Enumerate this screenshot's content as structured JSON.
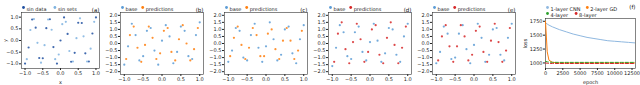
{
  "chart_data": [
    {
      "type": "scatter",
      "title": "(a)",
      "x_label": "x",
      "y_label": "y",
      "legend": "upper left",
      "xlim": [
        -1.1,
        1.1
      ],
      "ylim": [
        -1.2,
        1.2
      ],
      "xticks": [
        {
          "value": -1,
          "label": "−1.0"
        },
        {
          "value": -0.5,
          "label": "−0.5"
        },
        {
          "value": 0,
          "label": "0.0"
        },
        0.5,
        {
          "value": 1,
          "label": "1.0"
        }
      ],
      "yticks": [
        {
          "value": -1,
          "label": "−1.0"
        },
        {
          "value": -0.5,
          "label": "−0.5"
        },
        {
          "value": 0,
          "label": "0.0"
        },
        0.5,
        {
          "value": 1,
          "label": "1.0"
        }
      ],
      "series": [
        {
          "name": "sin data",
          "color": "#1f4fa0",
          "marker": "o",
          "x": [
            -1,
            -0.9,
            -0.8,
            -0.7,
            -0.6,
            -0.5,
            -0.4,
            -0.3,
            -0.2,
            -0.1,
            0,
            0.1,
            0.2,
            0.3,
            0.4,
            0.5,
            0.6,
            0.7,
            0.8,
            0.9,
            1
          ],
          "values": [
            -0.99,
            -0.3,
            0.9,
            0.55,
            -0.75,
            -0.76,
            0.53,
            0.91,
            -0.28,
            -0.99,
            0,
            0.99,
            0.28,
            -0.91,
            -0.53,
            0.76,
            0.75,
            -0.55,
            -0.9,
            0.3,
            0.99
          ]
        },
        {
          "name": "sin sets",
          "color": "#7fb3e0",
          "marker": "o",
          "x": [
            -0.95,
            -0.85,
            -0.75,
            -0.65,
            -0.55,
            -0.45,
            -0.35,
            -0.25,
            -0.15,
            -0.05,
            0.05,
            0.15,
            0.25,
            0.35,
            0.45,
            0.55,
            0.65,
            0.75,
            0.85,
            0.95
          ],
          "values": [
            -0.8,
            0.45,
            0.92,
            -0.1,
            -0.95,
            -0.2,
            0.9,
            0.46,
            -0.8,
            -0.6,
            0.7,
            0.8,
            -0.45,
            -0.9,
            0.1,
            0.95,
            0.18,
            -0.9,
            -0.35,
            0.8
          ]
        }
      ]
    },
    {
      "type": "scatter",
      "title": "(b)",
      "legend": "upper left",
      "xlim": [
        -1.1,
        1.1
      ],
      "ylim": [
        -2.2,
        2.2
      ],
      "xticks": [
        {
          "value": -1,
          "label": "−1.0"
        },
        {
          "value": -0.5,
          "label": "−0.5"
        },
        {
          "value": 0,
          "label": "0.0"
        },
        0.5,
        {
          "value": 1,
          "label": "1.0"
        }
      ],
      "yticks": [
        {
          "value": -2,
          "label": "−2.0"
        },
        {
          "value": -1.5,
          "label": "−1.5"
        },
        {
          "value": -1,
          "label": "−1.0"
        },
        {
          "value": -0.5,
          "label": "−0.5"
        },
        {
          "value": 0,
          "label": "0.0"
        },
        0.5,
        {
          "value": 1,
          "label": "1.0"
        },
        1.5,
        {
          "value": 2,
          "label": "2.0"
        }
      ],
      "series": [
        {
          "name": "base",
          "color": "#5b9bd5",
          "marker": "o",
          "x": [
            -1,
            -0.9,
            -0.8,
            -0.7,
            -0.6,
            -0.5,
            -0.4,
            -0.3,
            -0.2,
            -0.1,
            0,
            0.1,
            0.2,
            0.3,
            0.4,
            0.5,
            0.6,
            0.7,
            0.8,
            0.9,
            1
          ],
          "values": [
            -1.5,
            -0.2,
            1.4,
            0.6,
            -1.2,
            -0.9,
            0.9,
            1.1,
            -0.5,
            -1.5,
            0.2,
            1.3,
            0.5,
            -1.4,
            -0.6,
            1.2,
            0.9,
            -0.9,
            -1.1,
            0.6,
            1.5
          ]
        },
        {
          "name": "predictions",
          "color": "#ff7f0e",
          "marker": "o",
          "x": [
            -0.95,
            -0.85,
            -0.75,
            -0.65,
            -0.55,
            -0.45,
            -0.35,
            -0.25,
            -0.15,
            -0.05,
            0.05,
            0.15,
            0.25,
            0.35,
            0.45,
            0.55,
            0.65,
            0.75,
            0.85,
            0.95
          ],
          "values": [
            -1.1,
            0.6,
            1.2,
            -0.3,
            -1.3,
            -0.1,
            1.2,
            0.4,
            -1.1,
            -0.7,
            0.9,
            1.1,
            -0.6,
            -1.2,
            0.3,
            1.3,
            0,
            -1.2,
            -0.4,
            1.1
          ]
        }
      ]
    },
    {
      "type": "scatter",
      "title": "(c)",
      "legend": "upper left",
      "xlim": [
        -1.1,
        1.1
      ],
      "ylim": [
        -2.2,
        2.2
      ],
      "xticks": [
        {
          "value": -1,
          "label": "−1.0"
        },
        {
          "value": -0.5,
          "label": "−0.5"
        },
        {
          "value": 0,
          "label": "0.0"
        },
        0.5,
        {
          "value": 1,
          "label": "1.0"
        }
      ],
      "yticks": [
        {
          "value": -2,
          "label": "−2.0"
        },
        {
          "value": -1.5,
          "label": "−1.5"
        },
        {
          "value": -1,
          "label": "−1.0"
        },
        {
          "value": -0.5,
          "label": "−0.5"
        },
        {
          "value": 0,
          "label": "0.0"
        },
        0.5,
        {
          "value": 1,
          "label": "1.0"
        },
        1.5,
        {
          "value": 2,
          "label": "2.0"
        }
      ],
      "series": [
        {
          "name": "base",
          "color": "#5b9bd5",
          "marker": "o",
          "x": [
            -1,
            -0.9,
            -0.8,
            -0.7,
            -0.6,
            -0.5,
            -0.4,
            -0.3,
            -0.2,
            -0.1,
            0,
            0.1,
            0.2,
            0.3,
            0.4,
            0.5,
            0.6,
            0.7,
            0.8,
            0.9,
            1
          ],
          "values": [
            -1.3,
            -0.5,
            1.1,
            0.9,
            -1,
            -1.2,
            0.6,
            1.4,
            -0.3,
            -1.3,
            -0.2,
            1.5,
            0.3,
            -1.2,
            -0.8,
            1,
            1.2,
            -0.7,
            -1.4,
            0.3,
            1.3
          ]
        },
        {
          "name": "predictions",
          "color": "#ff7f0e",
          "marker": "o",
          "x": [
            -0.95,
            -0.85,
            -0.75,
            -0.65,
            -0.55,
            -0.45,
            -0.35,
            -0.25,
            -0.15,
            -0.05,
            0.05,
            0.15,
            0.25,
            0.35,
            0.45,
            0.55,
            0.65,
            0.75,
            0.85,
            0.95
          ],
          "values": [
            -0.9,
            0.4,
            1.2,
            -0.1,
            -1.1,
            -0.3,
            1.1,
            0.6,
            -0.9,
            -0.9,
            0.7,
            1,
            -0.4,
            -1.1,
            0.2,
            1.1,
            0.2,
            -1.1,
            -0.5,
            0.9
          ]
        }
      ]
    },
    {
      "type": "scatter",
      "title": "(d)",
      "legend": "upper left",
      "xlim": [
        -1.1,
        1.1
      ],
      "ylim": [
        -2.2,
        2.2
      ],
      "xticks": [
        {
          "value": -1,
          "label": "−1.0"
        },
        {
          "value": -0.5,
          "label": "−0.5"
        },
        {
          "value": 0,
          "label": "0.0"
        },
        0.5,
        {
          "value": 1,
          "label": "1.0"
        }
      ],
      "yticks": [
        {
          "value": -2,
          "label": "−2.0"
        },
        {
          "value": -1.5,
          "label": "−1.5"
        },
        {
          "value": -1,
          "label": "−1.0"
        },
        {
          "value": -0.5,
          "label": "−0.5"
        },
        {
          "value": 0,
          "label": "0.0"
        },
        0.5,
        {
          "value": 1,
          "label": "1.0"
        },
        1.5,
        {
          "value": 2,
          "label": "2.0"
        }
      ],
      "series": [
        {
          "name": "base",
          "color": "#5b9bd5",
          "marker": "o",
          "x": [
            -1,
            -0.9,
            -0.8,
            -0.7,
            -0.6,
            -0.5,
            -0.4,
            -0.3,
            -0.2,
            -0.1,
            0,
            0.1,
            0.2,
            0.3,
            0.4,
            0.5,
            0.6,
            0.7,
            0.8,
            0.9,
            1
          ],
          "values": [
            -1.6,
            -0.3,
            1.3,
            0.8,
            -0.9,
            -1.1,
            0.8,
            1.2,
            -0.6,
            -1.2,
            0.1,
            1.4,
            0.2,
            -1.3,
            -0.7,
            1.1,
            1,
            -0.8,
            -1.3,
            0.5,
            1.4
          ]
        },
        {
          "name": "predictions",
          "color": "#d62728",
          "marker": "o",
          "x": [
            -0.95,
            -0.85,
            -0.75,
            -0.65,
            -0.55,
            -0.45,
            -0.35,
            -0.25,
            -0.15,
            -0.05,
            0.05,
            0.15,
            0.25,
            0.35,
            0.45,
            0.55,
            0.65,
            0.75,
            0.85,
            0.95
          ],
          "values": [
            -1.3,
            0.7,
            1.5,
            -0.4,
            -1.4,
            0.1,
            1.4,
            0.3,
            -1.3,
            -0.6,
            1,
            1.3,
            -0.8,
            -1.4,
            0.4,
            1.5,
            -0.1,
            -1.4,
            -0.3,
            1.2
          ]
        }
      ]
    },
    {
      "type": "scatter",
      "title": "(e)",
      "legend": "upper left",
      "xlim": [
        -1.1,
        1.1
      ],
      "ylim": [
        -2.2,
        2.2
      ],
      "xticks": [
        {
          "value": -1,
          "label": "−1.0"
        },
        {
          "value": -0.5,
          "label": "−0.5"
        },
        {
          "value": 0,
          "label": "0.0"
        },
        0.5,
        {
          "value": 1,
          "label": "1.0"
        }
      ],
      "yticks": [
        {
          "value": -2,
          "label": "−2.0"
        },
        {
          "value": -1.5,
          "label": "−1.5"
        },
        {
          "value": -1,
          "label": "−1.0"
        },
        {
          "value": -0.5,
          "label": "−0.5"
        },
        {
          "value": 0,
          "label": "0.0"
        },
        0.5,
        {
          "value": 1,
          "label": "1.0"
        },
        1.5,
        {
          "value": 2,
          "label": "2.0"
        }
      ],
      "series": [
        {
          "name": "base",
          "color": "#5b9bd5",
          "marker": "o",
          "x": [
            -1,
            -0.9,
            -0.8,
            -0.7,
            -0.6,
            -0.5,
            -0.4,
            -0.3,
            -0.2,
            -0.1,
            0,
            0.1,
            0.2,
            0.3,
            0.4,
            0.5,
            0.6,
            0.7,
            0.8,
            0.9,
            1
          ],
          "values": [
            -1.4,
            -0.6,
            1.2,
            0.7,
            -1.1,
            -1,
            0.7,
            1.3,
            -0.4,
            -1.4,
            -0.1,
            1.4,
            0.4,
            -1.3,
            -0.8,
            1,
            1.1,
            -0.8,
            -1.2,
            0.4,
            1.4
          ]
        },
        {
          "name": "predictions",
          "color": "#d62728",
          "marker": "o",
          "x": [
            -0.95,
            -0.85,
            -0.75,
            -0.65,
            -0.55,
            -0.45,
            -0.35,
            -0.25,
            -0.15,
            -0.05,
            0.05,
            0.15,
            0.25,
            0.35,
            0.45,
            0.55,
            0.65,
            0.75,
            0.85,
            0.95
          ],
          "values": [
            -1.2,
            0.5,
            1.3,
            -0.2,
            -1.3,
            -0.2,
            1.3,
            0.5,
            -1.2,
            -0.8,
            0.9,
            1.2,
            -0.6,
            -1.3,
            0.2,
            1.4,
            0.1,
            -1.3,
            -0.5,
            1.1
          ]
        }
      ]
    },
    {
      "type": "line",
      "title": "(f)",
      "x_label": "epoch",
      "y_label": "loss",
      "legend": "upper right",
      "xlim": [
        0,
        13000
      ],
      "ylim": [
        900,
        1800
      ],
      "xticks": [
        0,
        2500,
        5000,
        7500,
        10000,
        12500
      ],
      "yticks": [
        1000,
        1250,
        1500,
        1750
      ],
      "x": [
        0,
        250,
        500,
        1000,
        2000,
        3000,
        4000,
        5000,
        6000,
        7000,
        8000,
        9000,
        10000,
        11000,
        12000,
        13000
      ],
      "series": [
        {
          "name": "1-layer CNN",
          "color": "#8fb8e0",
          "line_style": "solid",
          "values": [
            1720,
            1700,
            1680,
            1650,
            1600,
            1560,
            1520,
            1490,
            1460,
            1440,
            1420,
            1400,
            1390,
            1380,
            1370,
            1360
          ]
        },
        {
          "name": "2-layer GD",
          "color": "#ff7f0e",
          "line_style": "solid",
          "values": [
            1750,
            1200,
            1050,
            1010,
            1000,
            1000,
            1000,
            1000,
            1000,
            1000,
            1000,
            1000,
            1000,
            1000,
            1000,
            1000
          ]
        },
        {
          "name": "4-layer",
          "color": "#2ca02c",
          "line_style": "dashed",
          "values": [
            1030,
            1020,
            1015,
            1012,
            1010,
            1010,
            1010,
            1010,
            1010,
            1010,
            1010,
            1010,
            1010,
            1010,
            1010,
            1010
          ]
        },
        {
          "name": "8-layer",
          "color": "#d62728",
          "line_style": "dashed",
          "values": [
            1000,
            995,
            992,
            990,
            990,
            990,
            990,
            990,
            990,
            990,
            990,
            990,
            990,
            990,
            990,
            990
          ]
        }
      ]
    }
  ]
}
